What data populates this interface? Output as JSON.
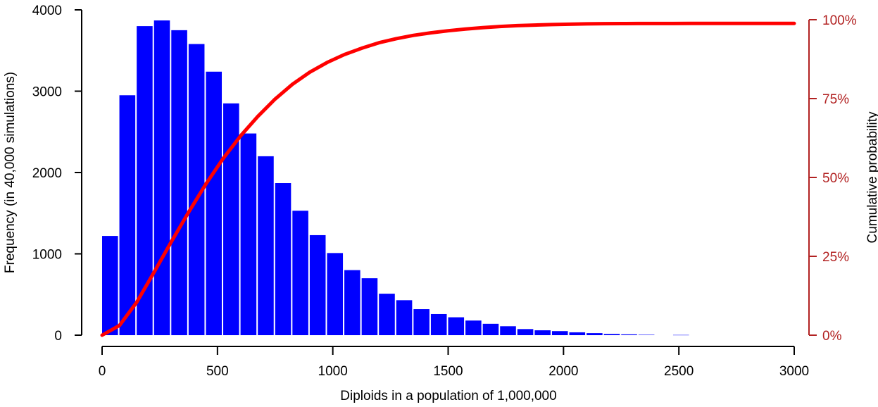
{
  "chart_data": {
    "type": "bar",
    "title": "",
    "xlabel": "Diploids in a population of 1,000,000",
    "ylabel": "Frequency (in 40,000 simulations)",
    "y2label": "Cumulative probability",
    "xlim": [
      0,
      3000
    ],
    "ylim": [
      0,
      4000
    ],
    "y2lim": [
      0,
      1
    ],
    "bin_width": 75,
    "x_ticks": [
      "0",
      "500",
      "1000",
      "1500",
      "2000",
      "2500",
      "3000"
    ],
    "y_ticks": [
      "0",
      "1000",
      "2000",
      "3000",
      "4000"
    ],
    "y2_ticks": [
      "0%",
      "25%",
      "50%",
      "75%",
      "100%"
    ],
    "grid": false,
    "legend": "none",
    "colors": {
      "bars": "#0000ff",
      "cumulative": "#ff0000",
      "right_axis": "#b22222"
    },
    "series": [
      {
        "kind": "histogram",
        "bin_starts": [
          0,
          75,
          150,
          225,
          300,
          375,
          450,
          525,
          600,
          675,
          750,
          825,
          900,
          975,
          1050,
          1125,
          1200,
          1275,
          1350,
          1425,
          1500,
          1575,
          1650,
          1725,
          1800,
          1875,
          1950,
          2025,
          2100,
          2175,
          2250,
          2325,
          2400,
          2475
        ],
        "values": [
          1220,
          2950,
          3800,
          3870,
          3750,
          3580,
          3240,
          2850,
          2480,
          2200,
          1870,
          1530,
          1230,
          1010,
          800,
          700,
          510,
          430,
          320,
          260,
          220,
          180,
          140,
          110,
          75,
          60,
          50,
          35,
          25,
          15,
          10,
          5,
          0,
          3
        ]
      },
      {
        "kind": "line",
        "x": [
          0,
          75,
          150,
          225,
          300,
          375,
          450,
          525,
          600,
          675,
          750,
          825,
          900,
          975,
          1050,
          1125,
          1200,
          1275,
          1350,
          1425,
          1500,
          1575,
          1650,
          1725,
          1800,
          1875,
          1950,
          2025,
          2100,
          2175,
          2250,
          2325,
          2400,
          2475,
          2550,
          3000
        ],
        "values": [
          0,
          0.0305,
          0.1043,
          0.1993,
          0.296,
          0.3898,
          0.4793,
          0.5603,
          0.6315,
          0.6935,
          0.7485,
          0.7953,
          0.8335,
          0.8643,
          0.8895,
          0.9095,
          0.927,
          0.9398,
          0.9505,
          0.9585,
          0.965,
          0.9705,
          0.975,
          0.9785,
          0.9813,
          0.9831,
          0.9846,
          0.9859,
          0.9868,
          0.9874,
          0.9878,
          0.988,
          0.9881,
          0.9881,
          0.9882,
          0.9882
        ]
      }
    ]
  }
}
